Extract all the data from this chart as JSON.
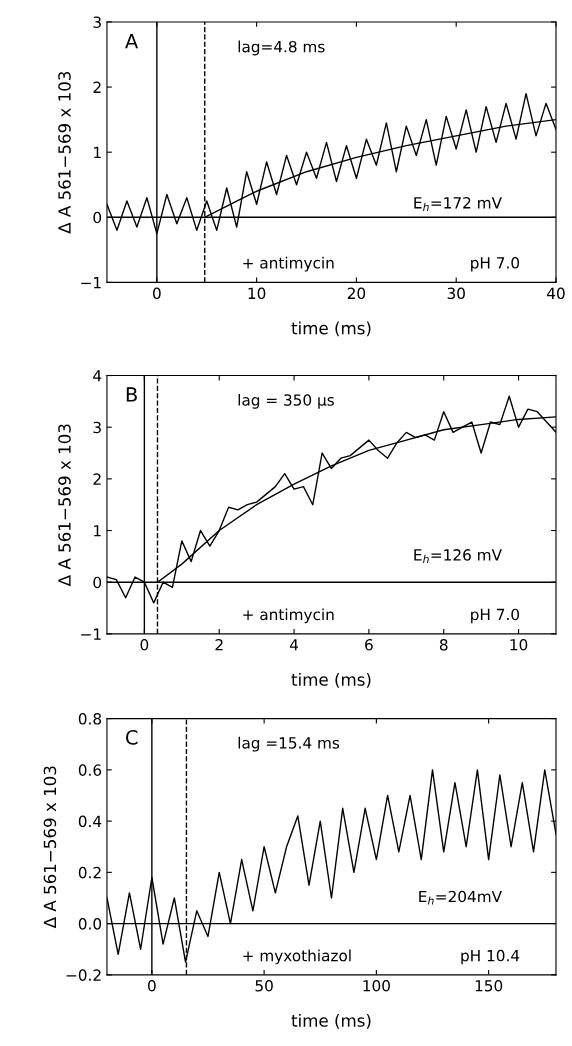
{
  "chart_data": [
    {
      "type": "line",
      "title": "A",
      "xlabel": "time (ms)",
      "ylabel": "Δ A 561−569 x 103",
      "xlim": [
        -5,
        40
      ],
      "xticks": [
        0,
        10,
        20,
        30,
        40
      ],
      "ylim": [
        -1,
        3
      ],
      "yticks": [
        {
          "value": -1,
          "label": "−1"
        },
        0,
        1,
        2,
        3
      ],
      "grid": false,
      "legend": false,
      "series": [
        {
          "color": "#000000",
          "x": [
            -5,
            -4,
            -3,
            -2,
            -1,
            0,
            1,
            2,
            3,
            4,
            5,
            6,
            7,
            8,
            9,
            10,
            11,
            12,
            13,
            14,
            15,
            16,
            17,
            18,
            19,
            20,
            21,
            22,
            23,
            24,
            25,
            26,
            27,
            28,
            29,
            30,
            31,
            32,
            33,
            34,
            35,
            36,
            37,
            38,
            39,
            40
          ],
          "values": [
            0.2,
            -0.2,
            0.25,
            -0.15,
            0.3,
            -0.25,
            0.35,
            -0.1,
            0.3,
            -0.2,
            0.25,
            -0.2,
            0.45,
            -0.15,
            0.7,
            0.2,
            0.85,
            0.35,
            0.95,
            0.5,
            1.0,
            0.6,
            1.15,
            0.55,
            1.1,
            0.6,
            1.2,
            0.8,
            1.45,
            0.7,
            1.4,
            0.95,
            1.5,
            0.8,
            1.55,
            1.05,
            1.65,
            1.0,
            1.7,
            1.15,
            1.75,
            1.2,
            1.9,
            1.25,
            1.75,
            1.35
          ]
        },
        {
          "color": "#000000",
          "x": [
            4.8,
            8,
            10,
            15,
            20,
            25,
            30,
            35,
            40
          ],
          "values": [
            0,
            0.25,
            0.4,
            0.7,
            0.92,
            1.1,
            1.25,
            1.4,
            1.5
          ]
        }
      ],
      "ref_lines": [
        {
          "axis": "x",
          "value": 0,
          "line_style": "solid"
        },
        {
          "axis": "x",
          "value": 4.8,
          "line_style": "dashed"
        },
        {
          "axis": "y",
          "value": 0,
          "line_style": "solid"
        }
      ],
      "annotations": [
        "lag=4.8 ms",
        "E$_{h}$=172 mV",
        "+ antimycin",
        "pH 7.0"
      ]
    },
    {
      "type": "line",
      "title": "B",
      "xlabel": "time (ms)",
      "ylabel": "Δ A 561−569 x 103",
      "xlim": [
        -1,
        11
      ],
      "xticks": [
        0,
        2,
        4,
        6,
        8,
        10
      ],
      "ylim": [
        -1,
        4
      ],
      "yticks": [
        {
          "value": -1,
          "label": "−1"
        },
        0,
        1,
        2,
        3,
        4
      ],
      "grid": false,
      "legend": false,
      "series": [
        {
          "color": "#000000",
          "x": [
            -1,
            -0.75,
            -0.5,
            -0.25,
            0,
            0.25,
            0.5,
            0.75,
            1,
            1.25,
            1.5,
            1.75,
            2,
            2.25,
            2.5,
            2.75,
            3,
            3.25,
            3.5,
            3.75,
            4,
            4.25,
            4.5,
            4.75,
            5,
            5.25,
            5.5,
            5.75,
            6,
            6.25,
            6.5,
            6.75,
            7,
            7.25,
            7.5,
            7.75,
            8,
            8.25,
            8.5,
            8.75,
            9,
            9.25,
            9.5,
            9.75,
            10,
            10.25,
            10.5,
            10.75,
            11
          ],
          "values": [
            0.1,
            0.05,
            -0.3,
            0.1,
            0,
            -0.4,
            0,
            -0.1,
            0.8,
            0.4,
            1.0,
            0.7,
            1.0,
            1.45,
            1.4,
            1.5,
            1.55,
            1.7,
            1.85,
            2.1,
            1.8,
            1.85,
            1.5,
            2.5,
            2.2,
            2.4,
            2.45,
            2.6,
            2.75,
            2.55,
            2.4,
            2.7,
            2.9,
            2.8,
            2.85,
            2.75,
            3.3,
            2.9,
            3.0,
            3.1,
            2.5,
            3.1,
            3.05,
            3.6,
            3.0,
            3.35,
            3.3,
            3.1,
            2.9
          ]
        },
        {
          "color": "#000000",
          "x": [
            0.35,
            1,
            2,
            3,
            4,
            5,
            6,
            7,
            8,
            9,
            10,
            11
          ],
          "values": [
            0,
            0.35,
            1.0,
            1.5,
            1.9,
            2.25,
            2.55,
            2.75,
            2.95,
            3.05,
            3.15,
            3.2
          ]
        }
      ],
      "ref_lines": [
        {
          "axis": "x",
          "value": 0,
          "line_style": "solid"
        },
        {
          "axis": "x",
          "value": 0.35,
          "line_style": "dashed"
        },
        {
          "axis": "y",
          "value": 0,
          "line_style": "solid"
        }
      ],
      "annotations": [
        "lag = 350 μs",
        "E$_{h}$=126 mV",
        "+ antimycin",
        "pH 7.0"
      ]
    },
    {
      "type": "line",
      "title": "C",
      "xlabel": "time (ms)",
      "ylabel": "Δ A 561−569 x 103",
      "xlim": [
        -20,
        180
      ],
      "xticks": [
        0,
        50,
        100,
        150
      ],
      "ylim": [
        -0.2,
        0.8
      ],
      "yticks": [
        {
          "value": -0.2,
          "label": "−0.2"
        },
        {
          "value": 0,
          "label": "0.0"
        },
        {
          "value": 0.2,
          "label": "0.2"
        },
        {
          "value": 0.4,
          "label": "0.4"
        },
        {
          "value": 0.6,
          "label": "0.6"
        },
        {
          "value": 0.8,
          "label": "0.8"
        }
      ],
      "grid": false,
      "legend": false,
      "series": [
        {
          "color": "#000000",
          "x": [
            -20,
            -15,
            -10,
            -5,
            0,
            5,
            10,
            15,
            20,
            25,
            30,
            35,
            40,
            45,
            50,
            55,
            60,
            65,
            70,
            75,
            80,
            85,
            90,
            95,
            100,
            105,
            110,
            115,
            120,
            125,
            130,
            135,
            140,
            145,
            150,
            155,
            160,
            165,
            170,
            175,
            180
          ],
          "values": [
            0.1,
            -0.12,
            0.12,
            -0.1,
            0.18,
            -0.08,
            0.1,
            -0.15,
            0.05,
            -0.05,
            0.2,
            0.0,
            0.25,
            0.05,
            0.3,
            0.12,
            0.3,
            0.42,
            0.15,
            0.4,
            0.1,
            0.45,
            0.2,
            0.45,
            0.25,
            0.5,
            0.28,
            0.5,
            0.25,
            0.6,
            0.28,
            0.55,
            0.3,
            0.6,
            0.25,
            0.58,
            0.3,
            0.55,
            0.28,
            0.6,
            0.35
          ]
        }
      ],
      "ref_lines": [
        {
          "axis": "x",
          "value": 0,
          "line_style": "solid"
        },
        {
          "axis": "x",
          "value": 15.4,
          "line_style": "dashed"
        },
        {
          "axis": "y",
          "value": 0,
          "line_style": "solid"
        }
      ],
      "annotations": [
        "lag =15.4 ms",
        "E$_{h}$=204mV",
        "+ myxothiazol",
        "pH 10.4"
      ]
    }
  ]
}
